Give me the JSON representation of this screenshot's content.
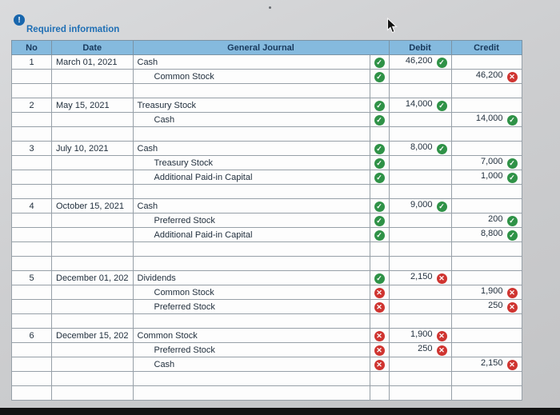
{
  "page": {
    "required_info_label": "Required information",
    "info_badge_glyph": "!"
  },
  "colors": {
    "header_bg": "#85bade",
    "header_text": "#18395c",
    "check_green": "#2f9247",
    "x_red": "#cf3430",
    "info_blue": "#1f6fb5"
  },
  "icons": {
    "check": "correct-check-icon",
    "x": "incorrect-x-icon"
  },
  "table": {
    "headers": {
      "no": "No",
      "date": "Date",
      "journal": "General Journal",
      "debit": "Debit",
      "credit": "Credit"
    },
    "rows": [
      {
        "no": "1",
        "date": "March 01, 2021",
        "account": "Cash",
        "indent": false,
        "status": "check",
        "debit": "46,200",
        "debit_status": "check",
        "credit": "",
        "credit_status": null
      },
      {
        "no": "",
        "date": "",
        "account": "Common Stock",
        "indent": true,
        "status": "check",
        "debit": "",
        "debit_status": null,
        "credit": "46,200",
        "credit_status": "x"
      },
      {
        "empty": true
      },
      {
        "no": "2",
        "date": "May 15, 2021",
        "account": "Treasury Stock",
        "indent": false,
        "status": "check",
        "debit": "14,000",
        "debit_status": "check",
        "credit": "",
        "credit_status": null
      },
      {
        "no": "",
        "date": "",
        "account": "Cash",
        "indent": true,
        "status": "check",
        "debit": "",
        "debit_status": null,
        "credit": "14,000",
        "credit_status": "check"
      },
      {
        "empty": true
      },
      {
        "no": "3",
        "date": "July 10, 2021",
        "account": "Cash",
        "indent": false,
        "status": "check",
        "debit": "8,000",
        "debit_status": "check",
        "credit": "",
        "credit_status": null
      },
      {
        "no": "",
        "date": "",
        "account": "Treasury Stock",
        "indent": true,
        "status": "check",
        "debit": "",
        "debit_status": null,
        "credit": "7,000",
        "credit_status": "check"
      },
      {
        "no": "",
        "date": "",
        "account": "Additional Paid-in Capital",
        "indent": true,
        "status": "check",
        "debit": "",
        "debit_status": null,
        "credit": "1,000",
        "credit_status": "check"
      },
      {
        "empty": true
      },
      {
        "no": "4",
        "date": "October 15, 2021",
        "account": "Cash",
        "indent": false,
        "status": "check",
        "debit": "9,000",
        "debit_status": "check",
        "credit": "",
        "credit_status": null
      },
      {
        "no": "",
        "date": "",
        "account": "Preferred Stock",
        "indent": true,
        "status": "check",
        "debit": "",
        "debit_status": null,
        "credit": "200",
        "credit_status": "check"
      },
      {
        "no": "",
        "date": "",
        "account": "Additional Paid-in Capital",
        "indent": true,
        "status": "check",
        "debit": "",
        "debit_status": null,
        "credit": "8,800",
        "credit_status": "check"
      },
      {
        "empty": true
      },
      {
        "empty": true
      },
      {
        "no": "5",
        "date": "December 01, 202",
        "account": "Dividends",
        "indent": false,
        "status": "check",
        "debit": "2,150",
        "debit_status": "x",
        "credit": "",
        "credit_status": null
      },
      {
        "no": "",
        "date": "",
        "account": "Common Stock",
        "indent": true,
        "status": "x",
        "debit": "",
        "debit_status": null,
        "credit": "1,900",
        "credit_status": "x"
      },
      {
        "no": "",
        "date": "",
        "account": "Preferred Stock",
        "indent": true,
        "status": "x",
        "debit": "",
        "debit_status": null,
        "credit": "250",
        "credit_status": "x"
      },
      {
        "empty": true
      },
      {
        "no": "6",
        "date": "December 15, 202",
        "account": "Common Stock",
        "indent": false,
        "status": "x",
        "debit": "1,900",
        "debit_status": "x",
        "credit": "",
        "credit_status": null
      },
      {
        "no": "",
        "date": "",
        "account": "Preferred Stock",
        "indent": true,
        "status": "x",
        "debit": "250",
        "debit_status": "x",
        "credit": "",
        "credit_status": null
      },
      {
        "no": "",
        "date": "",
        "account": "Cash",
        "indent": true,
        "status": "x",
        "debit": "",
        "debit_status": null,
        "credit": "2,150",
        "credit_status": "x"
      },
      {
        "empty": true
      },
      {
        "empty": true
      }
    ]
  }
}
